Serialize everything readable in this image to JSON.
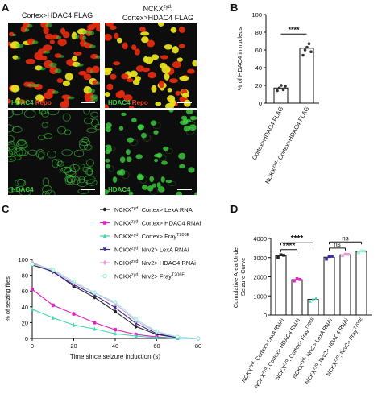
{
  "panel_letters": {
    "a": "A",
    "b": "B",
    "c": "C",
    "d": "D"
  },
  "microscopy": {
    "col1_title": "Cortex>HDAC4 FLAG",
    "col2_title_main": "NCKX",
    "col2_title_sup": "zyd",
    "col2_title_suffix": ";",
    "col2_title_line2": "Cortex>HDAC4 FLAG",
    "merge_label_green": "HDAC4",
    "merge_label_red": "Repo",
    "single_label": "HDAC4",
    "colors": {
      "green": "#3ecf3e",
      "red": "#e02a10",
      "yellow": "#e8e020"
    }
  },
  "chart_data": [
    {
      "panel": "B",
      "type": "bar",
      "ylabel": "% of HDAC4 in nucleus",
      "ylim": [
        0,
        100
      ],
      "yticks": [
        "0",
        "20",
        "40",
        "60",
        "80",
        "100"
      ],
      "categories": [
        "Cortex>HDAC4 FLAG",
        "NCKX^zyd; Cortex>HDAC4 FLAG"
      ],
      "category_parts": [
        {
          "main": "Cortex>HDAC4 FLAG",
          "sup": "",
          "rest": ""
        },
        {
          "main": "NCKX",
          "sup": "zyd",
          "rest": "; Cortex>HDAC4 FLAG"
        }
      ],
      "values": [
        17,
        62
      ],
      "points": [
        [
          14,
          17,
          20,
          15,
          19
        ],
        [
          54,
          60,
          63,
          67,
          58
        ]
      ],
      "significance": "****",
      "colors": {
        "bar": "#ffffff",
        "points": "#333333"
      }
    },
    {
      "panel": "C",
      "type": "line",
      "xlabel": "Time since seizure induction (s)",
      "ylabel": "% of seizing flies",
      "xlim": [
        0,
        80
      ],
      "ylim": [
        0,
        100
      ],
      "xticks": [
        "0",
        "20",
        "40",
        "60",
        "80"
      ],
      "yticks": [
        "0",
        "20",
        "40",
        "60",
        "80",
        "100"
      ],
      "x": [
        0,
        10,
        20,
        30,
        40,
        50,
        60,
        70,
        80
      ],
      "series": [
        {
          "name": "NCKX^zyd; Cortex> LexA RNAi",
          "label_main": "NCKX",
          "label_sup": "zyd",
          "label_rest": "; Cortex> LexA RNAi",
          "sup2": "",
          "color": "#222222",
          "marker": "circle",
          "values": [
            93,
            85,
            66,
            52,
            34,
            15,
            5,
            1,
            0
          ]
        },
        {
          "name": "NCKX^zyd; Cortex> HDAC4 RNAi",
          "label_main": "NCKX",
          "label_sup": "zyd",
          "label_rest": "; Cortex> HDAC4 RNAi",
          "sup2": "",
          "color": "#e020c0",
          "marker": "square",
          "values": [
            62,
            42,
            31,
            20,
            11,
            5,
            2,
            0,
            0
          ]
        },
        {
          "name": "NCKX^zyd; Cortex> Fray^T206E",
          "label_main": "NCKX",
          "label_sup": "zyd",
          "label_rest": "; Cortex> Fray",
          "sup2": "T206E",
          "color": "#40d8b0",
          "marker": "triangle",
          "values": [
            37,
            26,
            17,
            12,
            6,
            3,
            1,
            0,
            0
          ]
        },
        {
          "name": "NCKX^zyd; Nrv2> LexA RNAi",
          "label_main": "NCKX",
          "label_sup": "zyd",
          "label_rest": "; Nrv2> LexA RNAi",
          "sup2": "",
          "color": "#3a2aa0",
          "marker": "triangle-down",
          "values": [
            95,
            84,
            68,
            55,
            39,
            19,
            6,
            1,
            0
          ]
        },
        {
          "name": "NCKX^zyd; Nrv2> HDAC4 RNAi",
          "label_main": "NCKX",
          "label_sup": "zyd",
          "label_rest": "; Nrv2> HDAC4 RNAi",
          "sup2": "",
          "color": "#e0a0e0",
          "marker": "diamond",
          "values": [
            96,
            86,
            70,
            58,
            44,
            22,
            8,
            2,
            0
          ]
        },
        {
          "name": "NCKX^zyd; Nrv2> Fray^T206E",
          "label_main": "NCKX",
          "label_sup": "zyd",
          "label_rest": "; Nrv2> Fray",
          "sup2": "T206E",
          "color": "#a0f0d8",
          "marker": "circle-open",
          "values": [
            94,
            87,
            72,
            58,
            46,
            24,
            9,
            2,
            0
          ]
        }
      ]
    },
    {
      "panel": "D",
      "type": "bar",
      "ylabel": "Cumulative Area Under Seizure Curve",
      "ylim": [
        0,
        4000
      ],
      "yticks": [
        "0",
        "1000",
        "2000",
        "3000",
        "4000"
      ],
      "categories": [
        "NCKX^zyd; Cortex> LexA RNAi",
        "NCKX^zyd; Cortex> HDAC4 RNAi",
        "NCKX^zyd; Cortex> Fray^T206E",
        "NCKX^zyd; Nrv2> LexA RNAi",
        "NCKX^zyd; Nrv2> HDAC4 RNAi",
        "NCKX^zyd; Nrv2> Fray^T206E"
      ],
      "values": [
        3100,
        1850,
        820,
        3020,
        3150,
        3320
      ],
      "points": [
        [
          3000,
          3150,
          3120
        ],
        [
          1780,
          1900,
          1860
        ],
        [
          720,
          850,
          880
        ],
        [
          2920,
          3060,
          3080
        ],
        [
          3100,
          3180,
          3170
        ],
        [
          3260,
          3350,
          3340
        ]
      ],
      "point_colors": [
        "#222222",
        "#e020c0",
        "#40d8b0",
        "#3a2aa0",
        "#e0a0e0",
        "#a0f0d8"
      ],
      "comparisons": [
        {
          "from": 0,
          "to": 1,
          "label": "****"
        },
        {
          "from": 0,
          "to": 2,
          "label": "****"
        },
        {
          "from": 3,
          "to": 4,
          "label": "ns"
        },
        {
          "from": 3,
          "to": 5,
          "label": "ns"
        }
      ],
      "colors": {
        "bar": "#ffffff"
      }
    }
  ]
}
